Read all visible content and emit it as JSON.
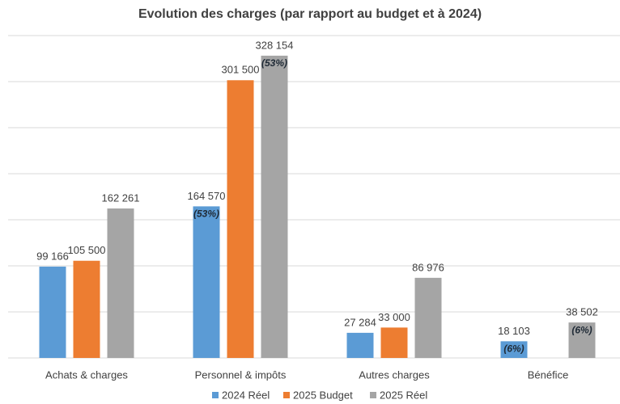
{
  "chart_data": {
    "type": "bar",
    "title": "Evolution des charges (par rapport au budget et à 2024)",
    "categories": [
      "Achats & charges",
      "Personnel & impôts",
      "Autres charges",
      "Bénéfice"
    ],
    "series": [
      {
        "name": "2024 Réel",
        "color": "#5b9bd5",
        "values": [
          99166,
          164570,
          27284,
          18103
        ],
        "value_labels": [
          "99 166",
          "164 570",
          "27 284",
          "18 103"
        ],
        "shares": [
          null,
          "(53%)",
          null,
          "(6%)"
        ]
      },
      {
        "name": "2025 Budget",
        "color": "#ed7d31",
        "values": [
          105500,
          301500,
          33000,
          null
        ],
        "value_labels": [
          "105 500",
          "301 500",
          "33 000",
          null
        ],
        "shares": [
          null,
          null,
          null,
          null
        ]
      },
      {
        "name": "2025 Réel",
        "color": "#a5a5a5",
        "values": [
          162261,
          328154,
          86976,
          38502
        ],
        "value_labels": [
          "162 261",
          "328 154",
          "86 976",
          "38 502"
        ],
        "shares": [
          null,
          "(53%)",
          null,
          "(6%)"
        ]
      }
    ],
    "ylim": [
      0,
      350000
    ],
    "yticks": [
      0,
      50000,
      100000,
      150000,
      200000,
      250000,
      300000,
      350000
    ],
    "grid": true
  }
}
